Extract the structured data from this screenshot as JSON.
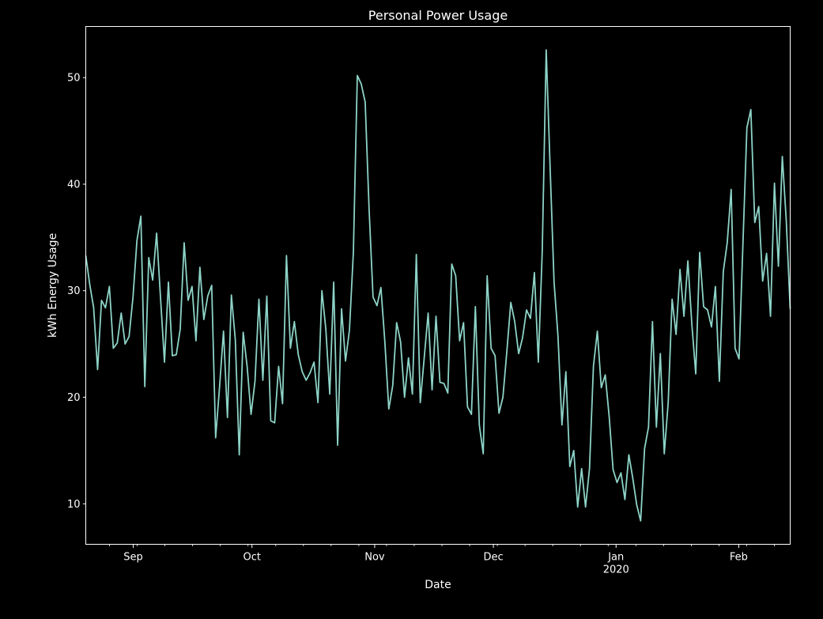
{
  "chart_data": {
    "type": "line",
    "title": "Personal Power Usage",
    "xlabel": "Date",
    "ylabel": "kWh Energy Usage",
    "x_start": "2019-08-20",
    "x_end": "2020-02-14",
    "ylim": [
      6.2,
      54.8
    ],
    "yticks": [
      10,
      20,
      30,
      40,
      50
    ],
    "xticks": [
      {
        "date": "2019-09-01",
        "label": "Sep"
      },
      {
        "date": "2019-10-01",
        "label": "Oct"
      },
      {
        "date": "2019-11-01",
        "label": "Nov"
      },
      {
        "date": "2019-12-01",
        "label": "Dec"
      },
      {
        "date": "2020-01-01",
        "label": "Jan",
        "sublabel": "2020"
      },
      {
        "date": "2020-02-01",
        "label": "Feb"
      }
    ],
    "grid": false,
    "line_color": "#8dd3c7",
    "series": [
      {
        "values": [
          33.3,
          30.6,
          28.4,
          22.6,
          29.1,
          28.4,
          30.4,
          24.6,
          25.1,
          27.9,
          25.0,
          25.7,
          29.4,
          34.7,
          37.0,
          21.0,
          33.1,
          31.0,
          35.4,
          29.3,
          23.3,
          30.8,
          23.9,
          24.0,
          26.4,
          34.5,
          29.1,
          30.4,
          25.3,
          32.2,
          27.3,
          29.5,
          30.5,
          16.2,
          21.0,
          26.2,
          18.1,
          29.6,
          25.4,
          14.6,
          26.1,
          22.9,
          18.4,
          21.5,
          29.2,
          21.6,
          29.5,
          17.8,
          17.6,
          22.9,
          19.4,
          33.3,
          24.6,
          27.1,
          24.0,
          22.4,
          21.6,
          22.3,
          23.3,
          19.5,
          30.0,
          26.4,
          20.3,
          30.8,
          15.5,
          28.3,
          23.4,
          26.3,
          33.6,
          50.2,
          49.4,
          47.7,
          37.6,
          29.4,
          28.6,
          30.3,
          25.2,
          18.9,
          21.1,
          27.0,
          25.2,
          20.0,
          23.7,
          20.3,
          33.4,
          19.5,
          23.7,
          27.9,
          20.7,
          27.6,
          21.4,
          21.3,
          20.4,
          32.5,
          31.4,
          25.3,
          27.0,
          19.1,
          18.4,
          28.5,
          17.4,
          14.7,
          31.4,
          24.6,
          23.9,
          18.5,
          20.0,
          24.3,
          28.9,
          27.1,
          24.1,
          25.6,
          28.2,
          27.4,
          31.7,
          23.3,
          33.8,
          52.6,
          41.5,
          30.8,
          25.7,
          17.4,
          22.4,
          13.5,
          15.0,
          9.7,
          13.3,
          9.7,
          13.3,
          22.9,
          26.2,
          20.9,
          22.1,
          18.2,
          13.2,
          12.0,
          12.9,
          10.4,
          14.6,
          12.4,
          9.9,
          8.4,
          15.2,
          17.2,
          27.1,
          17.2,
          24.1,
          14.7,
          19.5,
          29.2,
          25.9,
          32.0,
          27.6,
          32.8,
          26.9,
          22.2,
          33.6,
          28.5,
          28.2,
          26.6,
          30.4,
          21.5,
          31.8,
          34.5,
          39.5,
          24.6,
          23.6,
          34.5,
          45.3,
          47.0,
          36.4,
          37.9,
          30.9,
          33.5,
          27.6,
          40.1,
          32.3,
          42.6,
          36.6,
          28.3
        ]
      }
    ]
  }
}
